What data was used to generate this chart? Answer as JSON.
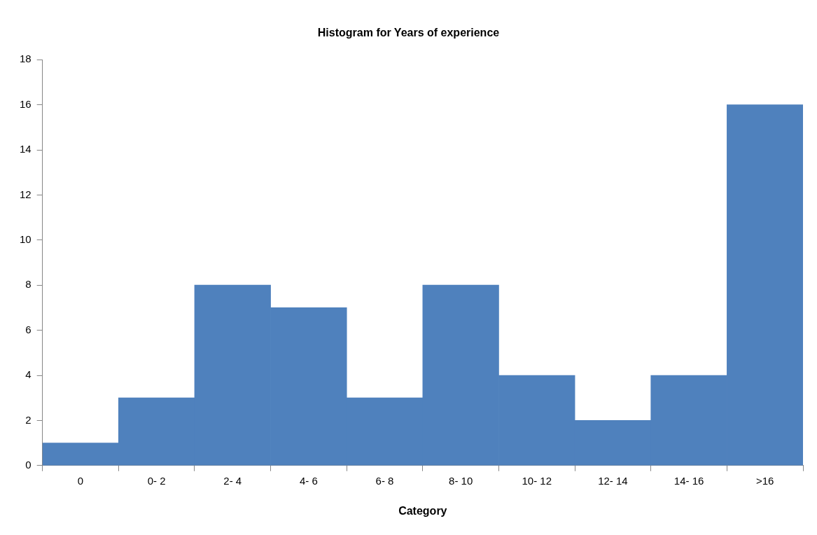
{
  "chart_data": {
    "type": "bar",
    "title": "Histogram for Years of experience",
    "xlabel": "Category",
    "categories": [
      "0",
      "0- 2",
      "2- 4",
      "4- 6",
      "6- 8",
      "8- 10",
      "10- 12",
      "12- 14",
      "14- 16",
      ">16"
    ],
    "values": [
      1,
      3,
      8,
      7,
      3,
      8,
      4,
      2,
      4,
      16
    ],
    "color": "#4f81bd",
    "ylim": [
      0,
      18
    ],
    "yticks": [
      0,
      2,
      4,
      6,
      8,
      10,
      12,
      14,
      16,
      18
    ],
    "grid": false,
    "legend": false
  }
}
